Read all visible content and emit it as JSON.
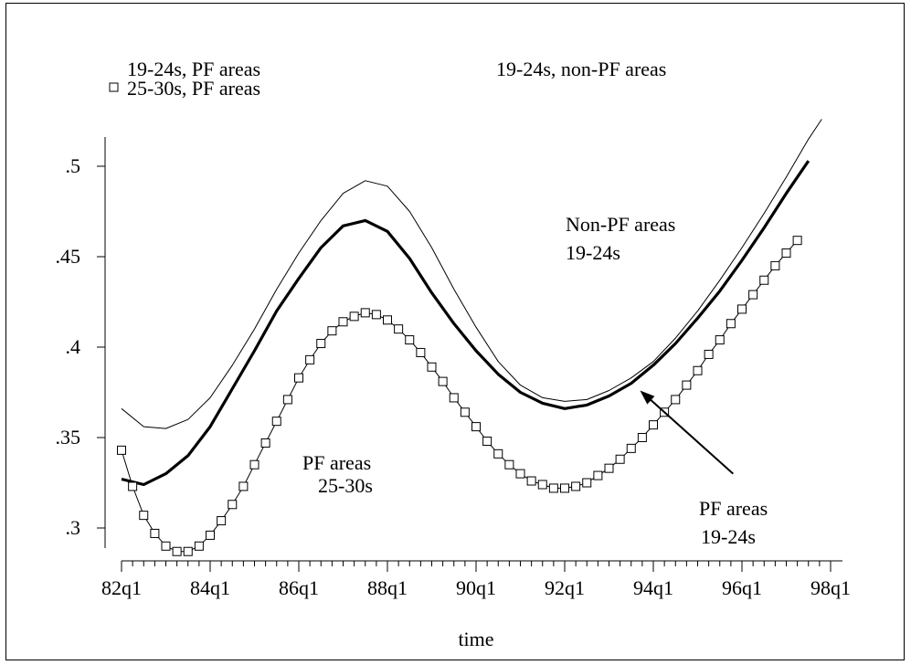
{
  "chart_data": {
    "type": "line",
    "xlabel": "time",
    "ylabel": "",
    "x_ticks": [
      "82q1",
      "84q1",
      "86q1",
      "88q1",
      "90q1",
      "92q1",
      "94q1",
      "96q1",
      "98q1"
    ],
    "y_ticks": [
      ".3",
      ".35",
      ".4",
      ".45",
      ".5"
    ],
    "xlim_years": [
      82,
      98
    ],
    "ylim": [
      0.285,
      0.52
    ],
    "legend": {
      "placement": "top-left",
      "items": [
        {
          "label": "19-24s, PF areas",
          "marker": "none",
          "style": "thin"
        },
        {
          "label": "19-24s, non-PF areas",
          "marker": "none",
          "style": "thin"
        },
        {
          "label": "25-30s, PF areas",
          "marker": "square",
          "style": "thin"
        }
      ]
    },
    "annotations": [
      {
        "line1": "Non-PF areas",
        "line2": "19-24s"
      },
      {
        "line1": "PF areas",
        "line2": "25-30s"
      },
      {
        "line1": "PF areas",
        "line2": "19-24s"
      }
    ],
    "arrow": {
      "from": [
        95.8,
        0.33
      ],
      "to": [
        93.7,
        0.376
      ]
    },
    "series": [
      {
        "name": "19-24s, non-PF areas",
        "style": "thin",
        "points": [
          [
            82.0,
            0.366
          ],
          [
            82.5,
            0.356
          ],
          [
            83.0,
            0.355
          ],
          [
            83.5,
            0.36
          ],
          [
            84.0,
            0.372
          ],
          [
            84.5,
            0.39
          ],
          [
            85.0,
            0.41
          ],
          [
            85.5,
            0.432
          ],
          [
            86.0,
            0.452
          ],
          [
            86.5,
            0.47
          ],
          [
            87.0,
            0.485
          ],
          [
            87.5,
            0.492
          ],
          [
            88.0,
            0.489
          ],
          [
            88.5,
            0.475
          ],
          [
            89.0,
            0.455
          ],
          [
            89.5,
            0.432
          ],
          [
            90.0,
            0.411
          ],
          [
            90.5,
            0.392
          ],
          [
            91.0,
            0.379
          ],
          [
            91.5,
            0.372
          ],
          [
            92.0,
            0.37
          ],
          [
            92.5,
            0.371
          ],
          [
            93.0,
            0.376
          ],
          [
            93.5,
            0.383
          ],
          [
            94.0,
            0.392
          ],
          [
            94.5,
            0.405
          ],
          [
            95.0,
            0.42
          ],
          [
            95.5,
            0.437
          ],
          [
            96.0,
            0.455
          ],
          [
            96.5,
            0.474
          ],
          [
            97.0,
            0.494
          ],
          [
            97.5,
            0.515
          ],
          [
            97.8,
            0.526
          ]
        ]
      },
      {
        "name": "19-24s, PF areas",
        "style": "thick",
        "points": [
          [
            82.0,
            0.327
          ],
          [
            82.5,
            0.324
          ],
          [
            83.0,
            0.33
          ],
          [
            83.5,
            0.34
          ],
          [
            84.0,
            0.356
          ],
          [
            84.5,
            0.377
          ],
          [
            85.0,
            0.398
          ],
          [
            85.5,
            0.42
          ],
          [
            86.0,
            0.438
          ],
          [
            86.5,
            0.455
          ],
          [
            87.0,
            0.467
          ],
          [
            87.5,
            0.47
          ],
          [
            88.0,
            0.464
          ],
          [
            88.5,
            0.449
          ],
          [
            89.0,
            0.43
          ],
          [
            89.5,
            0.413
          ],
          [
            90.0,
            0.398
          ],
          [
            90.5,
            0.385
          ],
          [
            91.0,
            0.375
          ],
          [
            91.5,
            0.369
          ],
          [
            92.0,
            0.366
          ],
          [
            92.5,
            0.368
          ],
          [
            93.0,
            0.373
          ],
          [
            93.5,
            0.38
          ],
          [
            94.0,
            0.39
          ],
          [
            94.5,
            0.402
          ],
          [
            95.0,
            0.416
          ],
          [
            95.5,
            0.431
          ],
          [
            96.0,
            0.448
          ],
          [
            96.5,
            0.466
          ],
          [
            97.0,
            0.485
          ],
          [
            97.5,
            0.503
          ]
        ]
      },
      {
        "name": "25-30s, PF areas",
        "style": "thin",
        "marker": "square",
        "points": [
          [
            82.0,
            0.343
          ],
          [
            82.25,
            0.323
          ],
          [
            82.5,
            0.307
          ],
          [
            82.75,
            0.297
          ],
          [
            83.0,
            0.29
          ],
          [
            83.25,
            0.287
          ],
          [
            83.5,
            0.287
          ],
          [
            83.75,
            0.29
          ],
          [
            84.0,
            0.296
          ],
          [
            84.25,
            0.304
          ],
          [
            84.5,
            0.313
          ],
          [
            84.75,
            0.323
          ],
          [
            85.0,
            0.335
          ],
          [
            85.25,
            0.347
          ],
          [
            85.5,
            0.359
          ],
          [
            85.75,
            0.371
          ],
          [
            86.0,
            0.383
          ],
          [
            86.25,
            0.393
          ],
          [
            86.5,
            0.402
          ],
          [
            86.75,
            0.409
          ],
          [
            87.0,
            0.414
          ],
          [
            87.25,
            0.417
          ],
          [
            87.5,
            0.419
          ],
          [
            87.75,
            0.418
          ],
          [
            88.0,
            0.415
          ],
          [
            88.25,
            0.41
          ],
          [
            88.5,
            0.404
          ],
          [
            88.75,
            0.397
          ],
          [
            89.0,
            0.389
          ],
          [
            89.25,
            0.381
          ],
          [
            89.5,
            0.372
          ],
          [
            89.75,
            0.364
          ],
          [
            90.0,
            0.356
          ],
          [
            90.25,
            0.348
          ],
          [
            90.5,
            0.341
          ],
          [
            90.75,
            0.335
          ],
          [
            91.0,
            0.33
          ],
          [
            91.25,
            0.326
          ],
          [
            91.5,
            0.324
          ],
          [
            91.75,
            0.322
          ],
          [
            92.0,
            0.322
          ],
          [
            92.25,
            0.323
          ],
          [
            92.5,
            0.325
          ],
          [
            92.75,
            0.329
          ],
          [
            93.0,
            0.333
          ],
          [
            93.25,
            0.338
          ],
          [
            93.5,
            0.344
          ],
          [
            93.75,
            0.35
          ],
          [
            94.0,
            0.357
          ],
          [
            94.25,
            0.364
          ],
          [
            94.5,
            0.371
          ],
          [
            94.75,
            0.379
          ],
          [
            95.0,
            0.387
          ],
          [
            95.25,
            0.396
          ],
          [
            95.5,
            0.404
          ],
          [
            95.75,
            0.413
          ],
          [
            96.0,
            0.421
          ],
          [
            96.25,
            0.429
          ],
          [
            96.5,
            0.437
          ],
          [
            96.75,
            0.445
          ],
          [
            97.0,
            0.452
          ],
          [
            97.25,
            0.459
          ]
        ]
      }
    ]
  }
}
